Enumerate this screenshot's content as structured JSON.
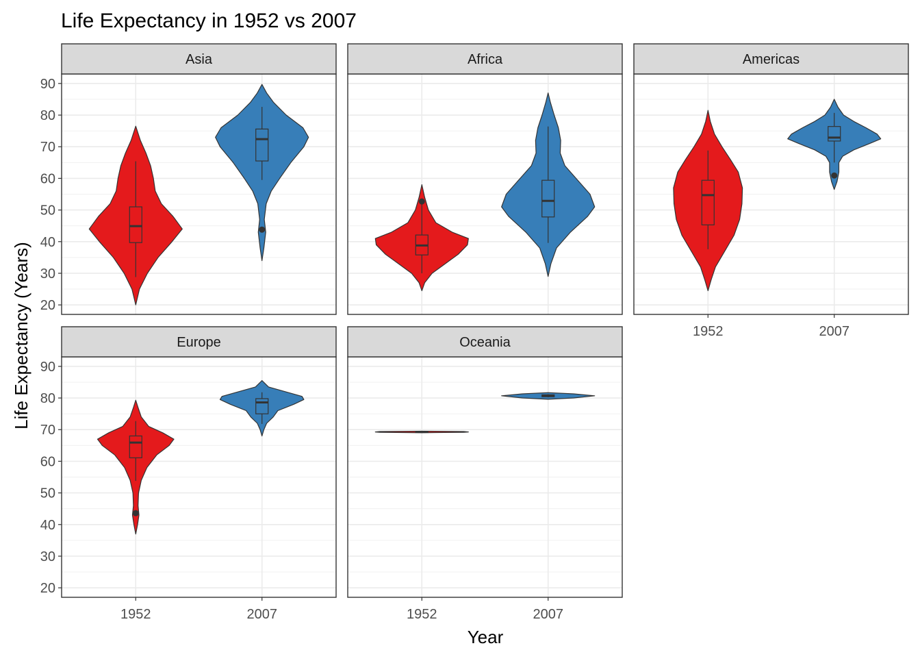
{
  "chart_data": {
    "type": "violin",
    "title": "Life Expectancy in 1952 vs 2007",
    "xlabel": "Year",
    "ylabel": "Life Expectancy (Years)",
    "categories": [
      "1952",
      "2007"
    ],
    "y_ticks": [
      "20",
      "30",
      "40",
      "50",
      "60",
      "70",
      "80",
      "90"
    ],
    "ylim": [
      17,
      93
    ],
    "grid": true,
    "legend": "none",
    "colors": {
      "1952": "#E41A1C",
      "2007": "#377EB8"
    },
    "panels": [
      {
        "name": "Asia",
        "groups": [
          {
            "year": "1952",
            "min": 28.8,
            "q1": 39.7,
            "median": 44.9,
            "q3": 51.0,
            "max": 65.4,
            "outliers": [],
            "violin": [
              [
                20,
                0
              ],
              [
                25,
                0.08
              ],
              [
                30,
                0.25
              ],
              [
                35,
                0.48
              ],
              [
                40,
                0.78
              ],
              [
                44,
                1.0
              ],
              [
                48,
                0.8
              ],
              [
                52,
                0.55
              ],
              [
                56,
                0.42
              ],
              [
                60,
                0.38
              ],
              [
                64,
                0.32
              ],
              [
                68,
                0.22
              ],
              [
                72,
                0.1
              ],
              [
                76.5,
                0
              ]
            ]
          },
          {
            "year": "2007",
            "min": 59.5,
            "q1": 65.5,
            "median": 72.4,
            "q3": 75.6,
            "max": 82.6,
            "outliers": [
              43.8
            ],
            "violin": [
              [
                34,
                0
              ],
              [
                38,
                0.04
              ],
              [
                43,
                0.08
              ],
              [
                47,
                0.05
              ],
              [
                52,
                0.09
              ],
              [
                56,
                0.2
              ],
              [
                60,
                0.38
              ],
              [
                65,
                0.62
              ],
              [
                70,
                0.9
              ],
              [
                73,
                1.0
              ],
              [
                76,
                0.88
              ],
              [
                80,
                0.52
              ],
              [
                84,
                0.25
              ],
              [
                87,
                0.1
              ],
              [
                89.7,
                0
              ]
            ]
          }
        ]
      },
      {
        "name": "Africa",
        "groups": [
          {
            "year": "1952",
            "min": 30.0,
            "q1": 35.8,
            "median": 38.8,
            "q3": 42.1,
            "max": 52.7,
            "outliers": [
              52.7
            ],
            "violin": [
              [
                24.5,
                0
              ],
              [
                27,
                0.06
              ],
              [
                30,
                0.22
              ],
              [
                33,
                0.5
              ],
              [
                36,
                0.78
              ],
              [
                39,
                0.98
              ],
              [
                41,
                1.0
              ],
              [
                43,
                0.65
              ],
              [
                46,
                0.3
              ],
              [
                50,
                0.14
              ],
              [
                54,
                0.06
              ],
              [
                58,
                0
              ]
            ]
          },
          {
            "year": "2007",
            "min": 39.6,
            "q1": 47.8,
            "median": 52.9,
            "q3": 59.4,
            "max": 76.4,
            "outliers": [],
            "violin": [
              [
                29,
                0
              ],
              [
                33,
                0.06
              ],
              [
                38,
                0.18
              ],
              [
                43,
                0.48
              ],
              [
                48,
                0.85
              ],
              [
                51,
                1.0
              ],
              [
                55,
                0.9
              ],
              [
                60,
                0.6
              ],
              [
                64,
                0.36
              ],
              [
                68,
                0.26
              ],
              [
                72,
                0.27
              ],
              [
                76,
                0.22
              ],
              [
                80,
                0.13
              ],
              [
                84,
                0.05
              ],
              [
                87,
                0
              ]
            ]
          }
        ]
      },
      {
        "name": "Americas",
        "groups": [
          {
            "year": "1952",
            "min": 37.6,
            "q1": 45.3,
            "median": 54.7,
            "q3": 59.4,
            "max": 68.8,
            "outliers": [],
            "violin": [
              [
                24.5,
                0
              ],
              [
                28,
                0.07
              ],
              [
                32,
                0.16
              ],
              [
                37,
                0.36
              ],
              [
                42,
                0.56
              ],
              [
                47,
                0.68
              ],
              [
                52,
                0.73
              ],
              [
                57,
                0.74
              ],
              [
                62,
                0.65
              ],
              [
                66,
                0.48
              ],
              [
                70,
                0.3
              ],
              [
                74,
                0.14
              ],
              [
                78,
                0.05
              ],
              [
                81.5,
                0
              ]
            ]
          },
          {
            "year": "2007",
            "min": 65.0,
            "q1": 71.8,
            "median": 72.9,
            "q3": 76.4,
            "max": 80.7,
            "outliers": [
              60.9
            ],
            "violin": [
              [
                56.5,
                0
              ],
              [
                59,
                0.06
              ],
              [
                62,
                0.1
              ],
              [
                65,
                0.1
              ],
              [
                67,
                0.18
              ],
              [
                69,
                0.42
              ],
              [
                71,
                0.76
              ],
              [
                72.5,
                1.0
              ],
              [
                74,
                0.92
              ],
              [
                76,
                0.68
              ],
              [
                78,
                0.42
              ],
              [
                80,
                0.2
              ],
              [
                82.5,
                0.08
              ],
              [
                85,
                0
              ]
            ]
          }
        ]
      },
      {
        "name": "Europe",
        "groups": [
          {
            "year": "1952",
            "min": 53.8,
            "q1": 61.1,
            "median": 65.9,
            "q3": 68.0,
            "max": 72.7,
            "outliers": [
              43.6
            ],
            "violin": [
              [
                37,
                0
              ],
              [
                40,
                0.04
              ],
              [
                43,
                0.07
              ],
              [
                46,
                0.05
              ],
              [
                50,
                0.06
              ],
              [
                54,
                0.12
              ],
              [
                58,
                0.24
              ],
              [
                62,
                0.45
              ],
              [
                65,
                0.72
              ],
              [
                67,
                0.82
              ],
              [
                69,
                0.58
              ],
              [
                71,
                0.28
              ],
              [
                74,
                0.12
              ],
              [
                77,
                0.05
              ],
              [
                79.3,
                0
              ]
            ]
          },
          {
            "year": "2007",
            "min": 71.8,
            "q1": 75.0,
            "median": 78.6,
            "q3": 79.8,
            "max": 81.8,
            "outliers": [],
            "violin": [
              [
                68,
                0
              ],
              [
                70,
                0.04
              ],
              [
                72,
                0.1
              ],
              [
                74,
                0.24
              ],
              [
                76,
                0.34
              ],
              [
                78,
                0.68
              ],
              [
                79.5,
                0.9
              ],
              [
                80.5,
                0.86
              ],
              [
                82,
                0.5
              ],
              [
                83.5,
                0.14
              ],
              [
                85.5,
                0
              ]
            ]
          }
        ]
      },
      {
        "name": "Oceania",
        "groups": [
          {
            "year": "1952",
            "min": 69.1,
            "q1": 69.2,
            "median": 69.3,
            "q3": 69.3,
            "max": 69.4,
            "outliers": [],
            "violin": [
              [
                69.0,
                0
              ],
              [
                69.15,
                0.9
              ],
              [
                69.26,
                1.0
              ],
              [
                69.4,
                0.9
              ],
              [
                69.5,
                0
              ]
            ]
          },
          {
            "year": "2007",
            "min": 80.2,
            "q1": 80.4,
            "median": 80.7,
            "q3": 81.0,
            "max": 81.2,
            "outliers": [],
            "violin": [
              [
                79.6,
                0
              ],
              [
                80.0,
                0.55
              ],
              [
                80.7,
                1.0
              ],
              [
                81.3,
                0.55
              ],
              [
                81.7,
                0
              ]
            ]
          }
        ]
      }
    ]
  }
}
